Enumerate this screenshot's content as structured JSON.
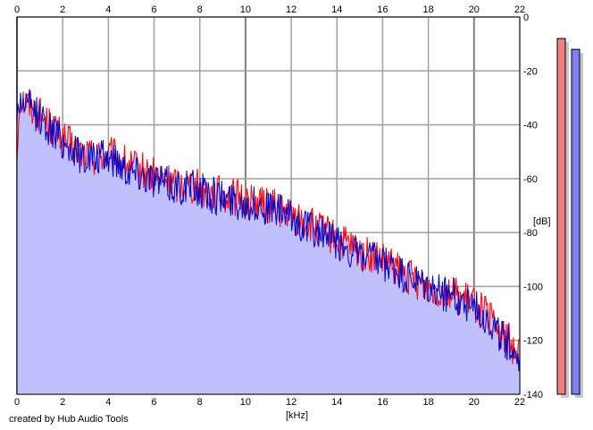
{
  "chart_data": {
    "type": "area",
    "xlabel": "[kHz]",
    "ylabel": "[dB]",
    "xlim": [
      0,
      22
    ],
    "ylim": [
      -140,
      0
    ],
    "x_ticks": [
      "0",
      "2",
      "4",
      "6",
      "8",
      "10",
      "12",
      "14",
      "16",
      "18",
      "20",
      "22"
    ],
    "y_ticks": [
      "0",
      "-20",
      "-40",
      "-60",
      "-80",
      "-100",
      "-120",
      "-140"
    ],
    "grid": true,
    "series": [
      {
        "color": "#ff0000",
        "x": [
          0,
          0.1,
          0.3,
          0.6,
          1.0,
          1.5,
          2.0,
          2.5,
          3.0,
          3.5,
          4.0,
          4.5,
          5.0,
          5.5,
          6.0,
          6.5,
          7.0,
          7.5,
          8.0,
          8.5,
          9.0,
          9.5,
          10.0,
          10.5,
          11.0,
          11.5,
          12.0,
          12.5,
          13.0,
          13.5,
          14.0,
          14.5,
          15.0,
          15.5,
          16.0,
          16.5,
          17.0,
          17.5,
          18.0,
          18.5,
          19.0,
          19.5,
          20.0,
          20.5,
          21.0,
          21.5,
          22.0
        ],
        "values": [
          -52,
          -30,
          -31,
          -33,
          -36,
          -41,
          -45,
          -49,
          -51,
          -52,
          -51,
          -53,
          -56,
          -57,
          -59,
          -61,
          -62,
          -62,
          -63,
          -65,
          -66,
          -67,
          -68,
          -69,
          -70,
          -71,
          -74,
          -76,
          -78,
          -80,
          -83,
          -85,
          -88,
          -89,
          -91,
          -93,
          -96,
          -98,
          -100,
          -101,
          -102,
          -105,
          -106,
          -110,
          -116,
          -120,
          -125
        ]
      },
      {
        "color": "#0000cc",
        "x": [
          0,
          0.1,
          0.3,
          0.6,
          1.0,
          1.5,
          2.0,
          2.5,
          3.0,
          3.5,
          4.0,
          4.5,
          5.0,
          5.5,
          6.0,
          6.5,
          7.0,
          7.5,
          8.0,
          8.5,
          9.0,
          9.5,
          10.0,
          10.5,
          11.0,
          11.5,
          12.0,
          12.5,
          13.0,
          13.5,
          14.0,
          14.5,
          15.0,
          15.5,
          16.0,
          16.5,
          17.0,
          17.5,
          18.0,
          18.5,
          19.0,
          19.5,
          20.0,
          20.5,
          21.0,
          21.5,
          22.0
        ],
        "values": [
          -38,
          -31,
          -32,
          -34,
          -37,
          -42,
          -46,
          -50,
          -52,
          -53,
          -52,
          -54,
          -57,
          -58,
          -60,
          -62,
          -63,
          -63,
          -64,
          -66,
          -67,
          -68,
          -69,
          -70,
          -71,
          -72,
          -75,
          -77,
          -79,
          -81,
          -84,
          -86,
          -89,
          -90,
          -92,
          -94,
          -97,
          -99,
          -101,
          -102,
          -103,
          -106,
          -107,
          -111,
          -117,
          -121,
          -126
        ]
      }
    ],
    "fill_color": "#c0c0ff",
    "meters": [
      {
        "color": "#f08080",
        "value_db": -8
      },
      {
        "color": "#8080f0",
        "value_db": -12
      }
    ]
  },
  "credit": "created by Hub Audio Tools"
}
